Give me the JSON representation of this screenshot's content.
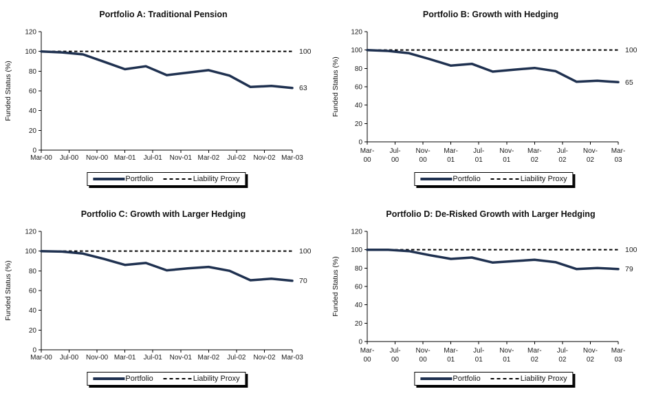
{
  "figure": {
    "background": "#ffffff"
  },
  "colors": {
    "portfolio_line": "#1f3150",
    "liability_line": "#000000",
    "axis": "#000000",
    "text": "#1a1a1a"
  },
  "chart_data": [
    {
      "type": "line",
      "title": "Portfolio A: Traditional Pension",
      "ylabel": "Funded Status (%)",
      "xlabel": "",
      "ylim": [
        0,
        120
      ],
      "yticks": [
        0,
        20,
        40,
        60,
        80,
        100,
        120
      ],
      "categories": [
        "Mar-00",
        "Jul-00",
        "Nov-00",
        "Mar-01",
        "Jul-01",
        "Nov-01",
        "Mar-02",
        "Jul-02",
        "Nov-02",
        "Mar-03"
      ],
      "category_months": [
        0,
        4,
        8,
        12,
        16,
        20,
        24,
        28,
        32,
        36
      ],
      "category_label_two_line": false,
      "x_months": [
        0,
        3,
        6,
        9,
        12,
        15,
        18,
        21,
        24,
        27,
        30,
        33,
        36
      ],
      "series": [
        {
          "name": "Portfolio",
          "style": "solid",
          "values": [
            100,
            99,
            97,
            89.5,
            82,
            85,
            76,
            78.5,
            81,
            75.5,
            64,
            65,
            63
          ]
        },
        {
          "name": "Liability Proxy",
          "style": "dashed",
          "constant": 100
        }
      ],
      "end_labels": [
        {
          "text": "100",
          "value": 100
        },
        {
          "text": "63",
          "value": 63
        }
      ],
      "legend_position": "bottom",
      "grid": false
    },
    {
      "type": "line",
      "title": "Portfolio B: Growth with Hedging",
      "ylabel": "Funded Status (%)",
      "xlabel": "",
      "ylim": [
        0,
        120
      ],
      "yticks": [
        0,
        20,
        40,
        60,
        80,
        100,
        120
      ],
      "categories": [
        "Mar-00",
        "Jul-00",
        "Nov-00",
        "Mar-01",
        "Jul-01",
        "Nov-01",
        "Mar-02",
        "Jul-02",
        "Nov-02",
        "Mar-03"
      ],
      "category_months": [
        0,
        4,
        8,
        12,
        16,
        20,
        24,
        28,
        32,
        36
      ],
      "category_label_two_line": true,
      "x_months": [
        0,
        3,
        6,
        9,
        12,
        15,
        18,
        21,
        24,
        27,
        30,
        33,
        36
      ],
      "series": [
        {
          "name": "Portfolio",
          "style": "solid",
          "values": [
            100,
            99,
            96.5,
            90,
            83,
            85,
            76.5,
            78.5,
            80.5,
            77,
            65.5,
            66.5,
            65
          ]
        },
        {
          "name": "Liability Proxy",
          "style": "dashed",
          "constant": 100
        }
      ],
      "end_labels": [
        {
          "text": "100",
          "value": 100
        },
        {
          "text": "65",
          "value": 65
        }
      ],
      "legend_position": "bottom",
      "grid": false
    },
    {
      "type": "line",
      "title": "Portfolio C: Growth with Larger Hedging",
      "ylabel": "Funded Status (%)",
      "xlabel": "",
      "ylim": [
        0,
        120
      ],
      "yticks": [
        0,
        20,
        40,
        60,
        80,
        100,
        120
      ],
      "categories": [
        "Mar-00",
        "Jul-00",
        "Nov-00",
        "Mar-01",
        "Jul-01",
        "Nov-01",
        "Mar-02",
        "Jul-02",
        "Nov-02",
        "Mar-03"
      ],
      "category_months": [
        0,
        4,
        8,
        12,
        16,
        20,
        24,
        28,
        32,
        36
      ],
      "category_label_two_line": false,
      "x_months": [
        0,
        3,
        6,
        9,
        12,
        15,
        18,
        21,
        24,
        27,
        30,
        33,
        36
      ],
      "series": [
        {
          "name": "Portfolio",
          "style": "solid",
          "values": [
            100,
            99.5,
            97.5,
            92,
            86,
            88,
            80.5,
            82.5,
            84,
            80,
            70.5,
            72,
            70
          ]
        },
        {
          "name": "Liability Proxy",
          "style": "dashed",
          "constant": 100
        }
      ],
      "end_labels": [
        {
          "text": "100",
          "value": 100
        },
        {
          "text": "70",
          "value": 70
        }
      ],
      "legend_position": "bottom",
      "grid": false
    },
    {
      "type": "line",
      "title": "Portfolio D: De-Risked Growth with Larger Hedging",
      "ylabel": "Funded Status (%)",
      "xlabel": "",
      "ylim": [
        0,
        120
      ],
      "yticks": [
        0,
        20,
        40,
        60,
        80,
        100,
        120
      ],
      "categories": [
        "Mar-00",
        "Jul-00",
        "Nov-00",
        "Mar-01",
        "Jul-01",
        "Nov-01",
        "Mar-02",
        "Jul-02",
        "Nov-02",
        "Mar-03"
      ],
      "category_months": [
        0,
        4,
        8,
        12,
        16,
        20,
        24,
        28,
        32,
        36
      ],
      "category_label_two_line": true,
      "x_months": [
        0,
        3,
        6,
        9,
        12,
        15,
        18,
        21,
        24,
        27,
        30,
        33,
        36
      ],
      "series": [
        {
          "name": "Portfolio",
          "style": "solid",
          "values": [
            100,
            100,
            98.5,
            94,
            90,
            91.5,
            86,
            87.5,
            89,
            86.5,
            79,
            80,
            79
          ]
        },
        {
          "name": "Liability Proxy",
          "style": "dashed",
          "constant": 100
        }
      ],
      "end_labels": [
        {
          "text": "100",
          "value": 100
        },
        {
          "text": "79",
          "value": 79
        }
      ],
      "legend_position": "bottom",
      "grid": false
    }
  ]
}
